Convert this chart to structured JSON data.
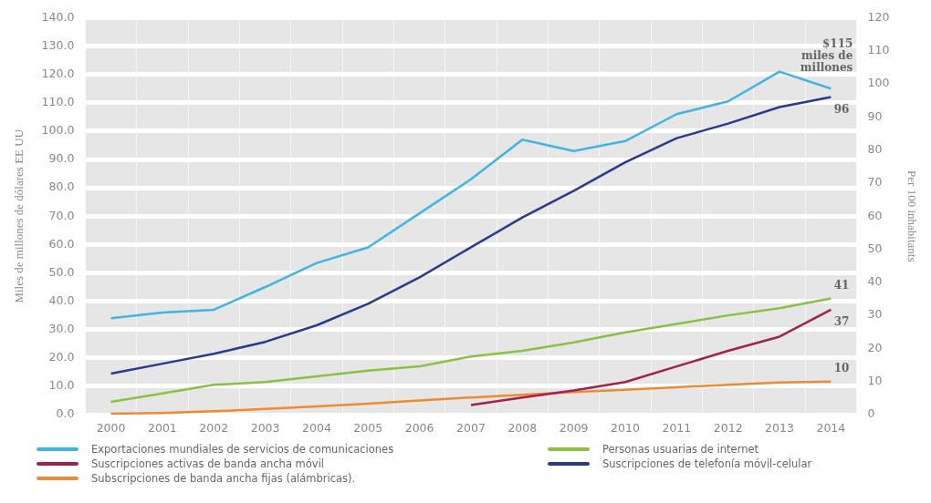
{
  "chart_data": {
    "type": "line",
    "categories": [
      "2000",
      "2001",
      "2002",
      "2003",
      "2004",
      "2005",
      "2006",
      "2007",
      "2008",
      "2009",
      "2010",
      "2011",
      "2012",
      "2013",
      "2014"
    ],
    "ylabel": "Miles de millones de dólares EE UU",
    "y2label": "Per 100 inhabitants",
    "ylim": [
      0,
      140
    ],
    "yticks": [
      {
        "value": 0,
        "label": "0.0"
      },
      {
        "value": 10,
        "label": "10.0"
      },
      {
        "value": 20,
        "label": "20.0"
      },
      {
        "value": 30,
        "label": "30.0"
      },
      {
        "value": 40,
        "label": "40.0"
      },
      {
        "value": 50,
        "label": "50.0"
      },
      {
        "value": 60,
        "label": "60.0"
      },
      {
        "value": 70,
        "label": "70.0"
      },
      {
        "value": 80,
        "label": "80.0"
      },
      {
        "value": 90,
        "label": "90.0"
      },
      {
        "value": 100,
        "label": "100.0"
      },
      {
        "value": 110,
        "label": "110.0"
      },
      {
        "value": 120,
        "label": "120.0"
      },
      {
        "value": 130,
        "label": "130.0"
      },
      {
        "value": 140,
        "label": "140.0"
      }
    ],
    "y2lim": [
      0,
      120
    ],
    "y2ticks": [
      0,
      10,
      20,
      30,
      40,
      50,
      60,
      70,
      80,
      90,
      100,
      110,
      120
    ],
    "grid": "y",
    "legend": "bottom",
    "marker": "none",
    "line_style": "solid",
    "series": [
      {
        "name": "Exportaciones mundiales de servicios de comunicaciones",
        "color": "#3fb6e0",
        "values": [
          34,
          36,
          37,
          45,
          53.5,
          59,
          71,
          83,
          97,
          93,
          96.5,
          106,
          110.5,
          121,
          115
        ],
        "value_labels": [
          null,
          null,
          null,
          null,
          null,
          null,
          null,
          null,
          null,
          null,
          null,
          null,
          null,
          null,
          "$115 miles de millones"
        ]
      },
      {
        "name": "Personas usuarias de internet",
        "color": "#8cc043",
        "values": [
          4.5,
          7.5,
          10.5,
          11.5,
          13.5,
          15.5,
          17,
          20.5,
          22.5,
          25.5,
          29,
          32,
          35,
          37.5,
          41
        ],
        "value_labels": [
          null,
          null,
          null,
          null,
          null,
          null,
          null,
          null,
          null,
          null,
          null,
          null,
          null,
          null,
          "41"
        ]
      },
      {
        "name": "Suscripciones activas de banda ancha móvil",
        "color": "#a3214f",
        "values": [
          null,
          null,
          null,
          null,
          null,
          null,
          null,
          3.4,
          6,
          8.5,
          11.5,
          17,
          22.5,
          27.5,
          37
        ],
        "value_labels": [
          null,
          null,
          null,
          null,
          null,
          null,
          null,
          null,
          null,
          null,
          null,
          null,
          null,
          null,
          "37"
        ]
      },
      {
        "name": "Suscripciones de telefonía móvil-celular",
        "color": "#2b3a8c",
        "axis": "y2",
        "values": [
          12.4,
          15.4,
          18.4,
          22,
          27,
          33.5,
          41.5,
          50.6,
          59.6,
          67.7,
          76.3,
          83.6,
          88,
          93,
          96
        ],
        "value_labels": [
          null,
          null,
          null,
          null,
          null,
          null,
          null,
          null,
          null,
          null,
          null,
          null,
          null,
          null,
          "96"
        ]
      },
      {
        "name": "Subscripciones de banda ancha fijas (alámbricas).",
        "color": "#f08a30",
        "axis": "y2",
        "values": [
          0.3,
          0.5,
          1,
          1.7,
          2.5,
          3.3,
          4.3,
          5.2,
          6,
          6.8,
          7.5,
          8.3,
          9,
          9.7,
          10
        ],
        "value_labels": [
          null,
          null,
          null,
          null,
          null,
          null,
          null,
          null,
          null,
          null,
          null,
          null,
          null,
          null,
          "10"
        ]
      }
    ]
  }
}
